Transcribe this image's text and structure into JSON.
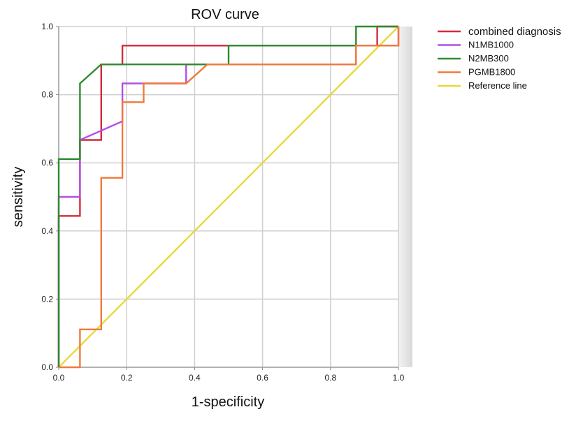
{
  "chart_data": {
    "type": "line",
    "title": "ROV curve",
    "xlabel": "1-specificity",
    "ylabel": "sensitivity",
    "xlim": [
      0,
      1
    ],
    "ylim": [
      0,
      1
    ],
    "grid": true,
    "legend_position": "top-right outside",
    "ticks": {
      "x": [
        "0.0",
        "0.2",
        "0.4",
        "0.6",
        "0.8",
        "1.0"
      ],
      "y": [
        "0.0",
        "0.2",
        "0.4",
        "0.6",
        "0.8",
        "1.0"
      ]
    },
    "series": [
      {
        "name": "combined diagnosis",
        "color": "#d42a3c",
        "points": [
          [
            0,
            0
          ],
          [
            0,
            0.444
          ],
          [
            0.0625,
            0.444
          ],
          [
            0.0625,
            0.667
          ],
          [
            0.125,
            0.667
          ],
          [
            0.125,
            0.889
          ],
          [
            0.1875,
            0.889
          ],
          [
            0.1875,
            0.944
          ],
          [
            0.9375,
            0.944
          ],
          [
            0.9375,
            1.0
          ],
          [
            1.0,
            1.0
          ]
        ]
      },
      {
        "name": "N1MB1000",
        "color": "#b34ee8",
        "points": [
          [
            0,
            0
          ],
          [
            0,
            0.5
          ],
          [
            0.0625,
            0.5
          ],
          [
            0.0625,
            0.667
          ],
          [
            0.1875,
            0.722
          ],
          [
            0.1875,
            0.833
          ],
          [
            0.25,
            0.833
          ],
          [
            0.375,
            0.833
          ],
          [
            0.375,
            0.889
          ],
          [
            0.875,
            0.889
          ],
          [
            0.875,
            0.944
          ],
          [
            1.0,
            0.944
          ],
          [
            1.0,
            1.0
          ]
        ]
      },
      {
        "name": "N2MB300",
        "color": "#2e8b2e",
        "points": [
          [
            0,
            0
          ],
          [
            0,
            0.611
          ],
          [
            0.0625,
            0.611
          ],
          [
            0.0625,
            0.833
          ],
          [
            0.125,
            0.889
          ],
          [
            0.5,
            0.889
          ],
          [
            0.5,
            0.944
          ],
          [
            0.875,
            0.944
          ],
          [
            0.875,
            1.0
          ],
          [
            1.0,
            1.0
          ]
        ]
      },
      {
        "name": "PGMB1800",
        "color": "#f07a3a",
        "points": [
          [
            0,
            0
          ],
          [
            0.0625,
            0
          ],
          [
            0.0625,
            0.111
          ],
          [
            0.125,
            0.111
          ],
          [
            0.125,
            0.556
          ],
          [
            0.1875,
            0.556
          ],
          [
            0.1875,
            0.778
          ],
          [
            0.25,
            0.778
          ],
          [
            0.25,
            0.833
          ],
          [
            0.375,
            0.833
          ],
          [
            0.4375,
            0.889
          ],
          [
            0.875,
            0.889
          ],
          [
            0.875,
            0.944
          ],
          [
            1.0,
            0.944
          ],
          [
            1.0,
            1.0
          ]
        ]
      },
      {
        "name": "Reference line",
        "color": "#e8d93a",
        "points": [
          [
            0,
            0
          ],
          [
            1,
            1
          ]
        ]
      }
    ]
  }
}
